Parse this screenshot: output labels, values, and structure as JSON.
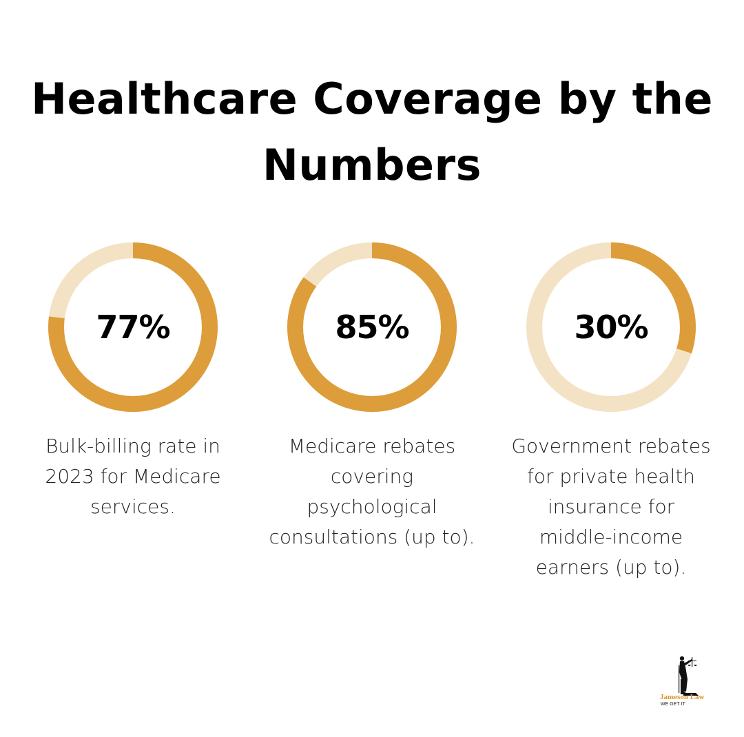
{
  "title": {
    "line1": "Healthcare Coverage by the",
    "line2": "Numbers"
  },
  "colors": {
    "filled": "#DD9D3A",
    "track": "#F3E2C4",
    "text": "#000000"
  },
  "stats": [
    {
      "value": "77%",
      "percent": 77,
      "caption_lines": [
        "Bulk-billing rate in",
        "2023 for Medicare",
        "services."
      ]
    },
    {
      "value": "85%",
      "percent": 85,
      "caption_lines": [
        "Medicare rebates",
        "covering",
        "psychological",
        "consultations (up to)."
      ]
    },
    {
      "value": "30%",
      "percent": 30,
      "caption_lines": [
        "Government rebates",
        "for private health",
        "insurance for",
        "middle-income",
        "earners (up to)."
      ]
    }
  ],
  "logo": {
    "name": "Jameson Law",
    "tagline": "WE GET IT",
    "icon": "lady-justice-icon"
  },
  "chart_data": {
    "type": "pie",
    "subtype": "donut-progress",
    "title": "Healthcare Coverage by the Numbers",
    "categories": [
      "Bulk-billing rate in 2023 for Medicare services.",
      "Medicare rebates covering psychological consultations (up to).",
      "Government rebates for private health insurance for middle-income earners (up to)."
    ],
    "values": [
      77,
      85,
      30
    ],
    "unit": "%",
    "range": [
      0,
      100
    ],
    "legend": "none"
  }
}
